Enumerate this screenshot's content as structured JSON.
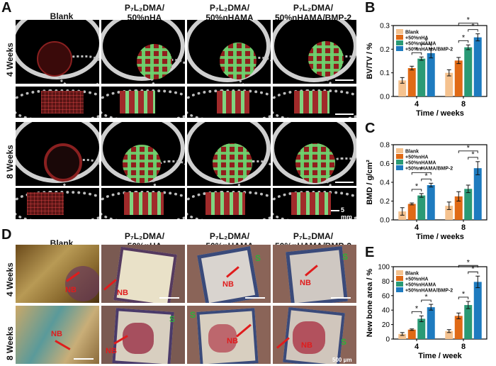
{
  "panels": {
    "A": "A",
    "B": "B",
    "C": "C",
    "D": "D",
    "E": "E"
  },
  "columns": {
    "blank": "Blank",
    "c2_line1": "P₇L₂DMA/",
    "c2_line2": "50%nHA",
    "c3_line1": "P₇L₂DMA/",
    "c3_line2": "50%nHAMA",
    "c4_line1": "P₇L₂DMA/",
    "c4_line2": "50%nHAMA/BMP-2"
  },
  "rows": {
    "week4": "4 Weeks",
    "week8": "8 Weeks"
  },
  "ct_scale_text": "5 mm",
  "histology": {
    "S": "S",
    "NB": "NB",
    "scale_text": "500 μm"
  },
  "colors": {
    "blank": "#f5c28f",
    "nha": "#e06a16",
    "nhama": "#2a9a75",
    "nhama_bmp2": "#1e7bbf",
    "sig": "#000000"
  },
  "chart_data": [
    {
      "id": "B",
      "type": "bar",
      "ylabel": "BV/TV / %",
      "xlabel": "Time / weeks",
      "categories": [
        "4",
        "8"
      ],
      "ylim": [
        0,
        0.3
      ],
      "yticks": [
        "0.0",
        "0.1",
        "0.2",
        "0.3"
      ],
      "ytick_values": [
        0,
        0.1,
        0.2,
        0.3
      ],
      "legend_position": "top-left",
      "series": [
        {
          "name": "Blank",
          "values": [
            0.068,
            0.1
          ],
          "errors": [
            0.012,
            0.013
          ]
        },
        {
          "name": "+50%nHA",
          "values": [
            0.12,
            0.152
          ],
          "errors": [
            0.008,
            0.013
          ]
        },
        {
          "name": "+50%nHAMA",
          "values": [
            0.16,
            0.208
          ],
          "errors": [
            0.007,
            0.01
          ]
        },
        {
          "name": "+50%nHAMA/BMP-2",
          "values": [
            0.183,
            0.25
          ],
          "errors": [
            0.02,
            0.015
          ]
        }
      ],
      "significance": [
        {
          "group": 0,
          "from": 1,
          "to": 2,
          "label": "*"
        },
        {
          "group": 0,
          "from": 2,
          "to": 3,
          "label": "*"
        },
        {
          "group": 1,
          "from": 1,
          "to": 2,
          "label": "*"
        },
        {
          "group": 1,
          "from": 2,
          "to": 3,
          "label": "*"
        },
        {
          "group": 1,
          "from": 1,
          "to": 3,
          "label": "*"
        }
      ]
    },
    {
      "id": "C",
      "type": "bar",
      "ylabel": "BMD / g/cm²",
      "xlabel": "Time / weeks",
      "categories": [
        "4",
        "8"
      ],
      "ylim": [
        0,
        0.8
      ],
      "yticks": [
        "0.0",
        "0.2",
        "0.4",
        "0.6",
        "0.8"
      ],
      "ytick_values": [
        0,
        0.2,
        0.4,
        0.6,
        0.8
      ],
      "legend_position": "top-left",
      "series": [
        {
          "name": "Blank",
          "values": [
            0.09,
            0.15
          ],
          "errors": [
            0.04,
            0.04
          ]
        },
        {
          "name": "+50%nHA",
          "values": [
            0.17,
            0.25
          ],
          "errors": [
            0.01,
            0.05
          ]
        },
        {
          "name": "+50%nHAMA",
          "values": [
            0.26,
            0.33
          ],
          "errors": [
            0.02,
            0.04
          ]
        },
        {
          "name": "+50%nHAMA/BMP-2",
          "values": [
            0.37,
            0.55
          ],
          "errors": [
            0.02,
            0.07
          ]
        }
      ],
      "significance": [
        {
          "group": 0,
          "from": 1,
          "to": 2,
          "label": "*"
        },
        {
          "group": 0,
          "from": 2,
          "to": 3,
          "label": "*"
        },
        {
          "group": 0,
          "from": 1,
          "to": 3,
          "label": "*"
        },
        {
          "group": 1,
          "from": 2,
          "to": 3,
          "label": "*"
        },
        {
          "group": 1,
          "from": 1,
          "to": 3,
          "label": "*"
        }
      ]
    },
    {
      "id": "E",
      "type": "bar",
      "ylabel": "New bone area / %",
      "xlabel": "Time / week",
      "categories": [
        "4",
        "8"
      ],
      "ylim": [
        0,
        100
      ],
      "yticks": [
        "0",
        "20",
        "40",
        "60",
        "80",
        "100"
      ],
      "ytick_values": [
        0,
        20,
        40,
        60,
        80,
        100
      ],
      "legend_position": "top-left",
      "series": [
        {
          "name": "Blank",
          "values": [
            7,
            11
          ],
          "errors": [
            2,
            2
          ]
        },
        {
          "name": "+50%nHA",
          "values": [
            13,
            32
          ],
          "errors": [
            1,
            4
          ]
        },
        {
          "name": "+50%nHAMA",
          "values": [
            28,
            47
          ],
          "errors": [
            4,
            5
          ]
        },
        {
          "name": "+50%nHAMA/BMP-2",
          "values": [
            44,
            79
          ],
          "errors": [
            4,
            8
          ]
        }
      ],
      "significance": [
        {
          "group": 0,
          "from": 1,
          "to": 2,
          "label": "*"
        },
        {
          "group": 0,
          "from": 2,
          "to": 3,
          "label": "*"
        },
        {
          "group": 1,
          "from": 1,
          "to": 2,
          "label": "*"
        },
        {
          "group": 1,
          "from": 2,
          "to": 3,
          "label": "*"
        },
        {
          "group": 1,
          "from": 1,
          "to": 3,
          "label": "*"
        }
      ]
    }
  ]
}
